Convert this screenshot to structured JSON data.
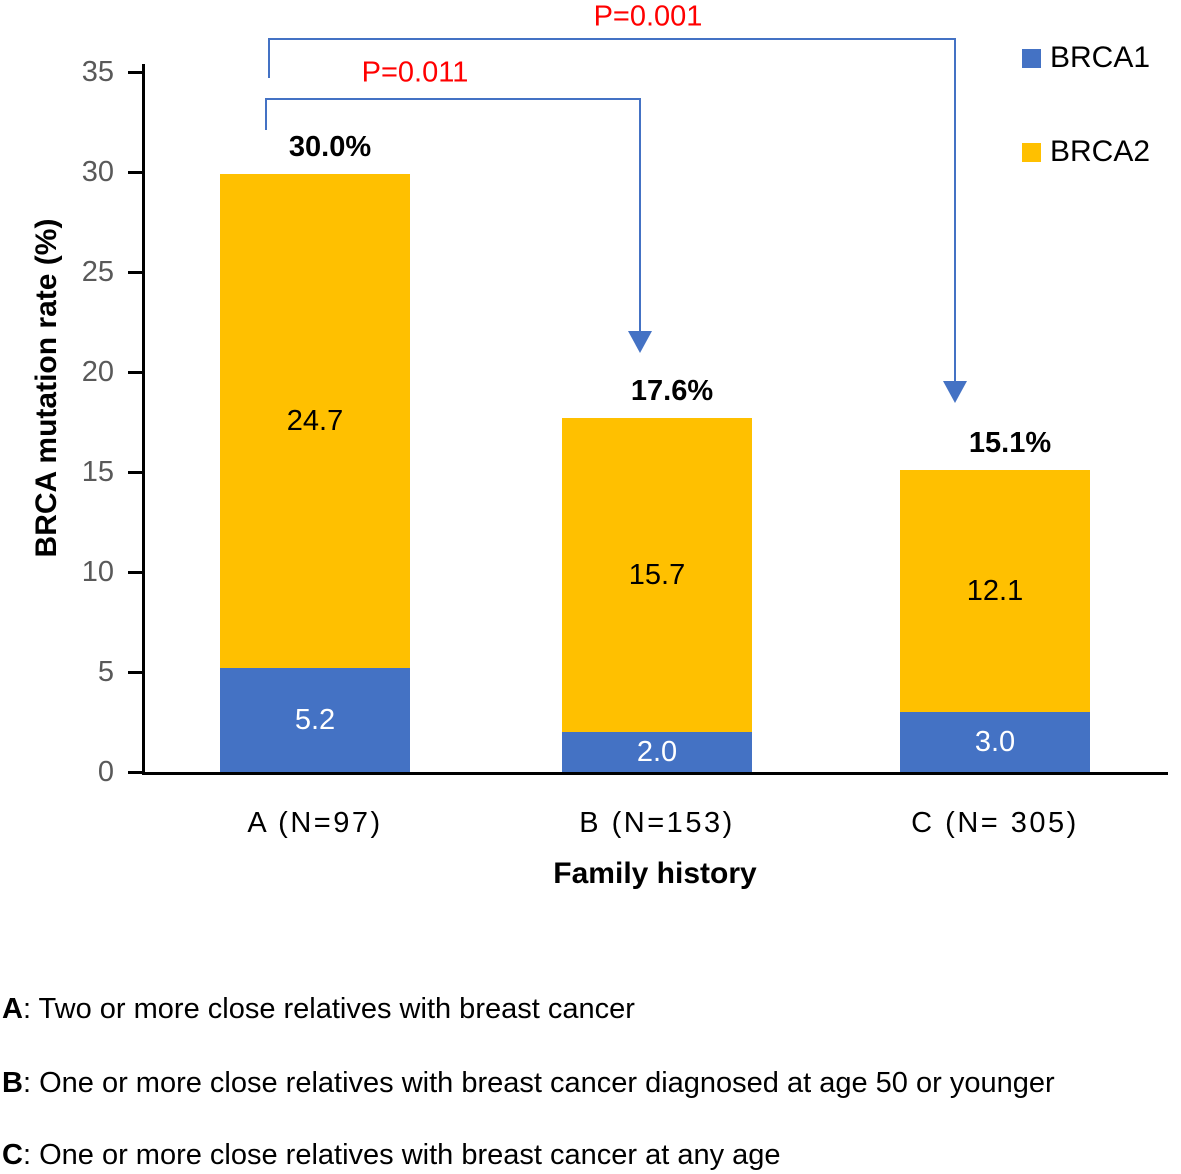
{
  "chart_data": {
    "type": "bar",
    "stacked": true,
    "xlabel": "Family history",
    "ylabel": "BRCA mutation rate (%)",
    "ylim": [
      0,
      35
    ],
    "yticks": [
      0,
      5,
      10,
      15,
      20,
      25,
      30,
      35
    ],
    "grid": false,
    "legend_position": "top-right",
    "categories": [
      "A (N=97)",
      "B (N=153)",
      "C (N= 305)"
    ],
    "series": [
      {
        "name": "BRCA1",
        "color": "#4472C4",
        "values": [
          5.2,
          2.0,
          3.0
        ],
        "value_labels": [
          "5.2",
          "2.0",
          "3.0"
        ],
        "label_color": "#FFFFFF"
      },
      {
        "name": "BRCA2",
        "color": "#FFC000",
        "values": [
          24.7,
          15.7,
          12.1
        ],
        "value_labels": [
          "24.7",
          "15.7",
          "12.1"
        ],
        "label_color": "#000000"
      }
    ],
    "total_labels": [
      "30.0%",
      "17.6%",
      "15.1%"
    ],
    "annotations": [
      {
        "label": "P=0.011",
        "compares": "A vs B",
        "color": "#FF0000"
      },
      {
        "label": "P=0.001",
        "compares": "A vs C",
        "color": "#FF0000"
      }
    ],
    "axis_color": "#000000",
    "tick_label_color": "#595959",
    "bracket_color": "#4472C4"
  },
  "footnotes": [
    {
      "key": "A",
      "text": "Two or more close relatives with breast cancer"
    },
    {
      "key": "B",
      "text": "One or more close relatives with breast cancer diagnosed at age 50 or younger"
    },
    {
      "key": "C",
      "text": "One or more close relatives with breast cancer at any age"
    }
  ]
}
